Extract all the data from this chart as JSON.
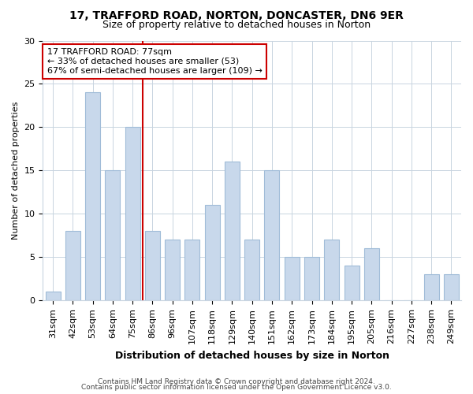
{
  "title1": "17, TRAFFORD ROAD, NORTON, DONCASTER, DN6 9ER",
  "title2": "Size of property relative to detached houses in Norton",
  "xlabel": "Distribution of detached houses by size in Norton",
  "ylabel": "Number of detached properties",
  "categories": [
    "31sqm",
    "42sqm",
    "53sqm",
    "64sqm",
    "75sqm",
    "86sqm",
    "96sqm",
    "107sqm",
    "118sqm",
    "129sqm",
    "140sqm",
    "151sqm",
    "162sqm",
    "173sqm",
    "184sqm",
    "195sqm",
    "205sqm",
    "216sqm",
    "227sqm",
    "238sqm",
    "249sqm"
  ],
  "values": [
    1,
    8,
    24,
    15,
    20,
    8,
    7,
    7,
    11,
    16,
    7,
    15,
    5,
    5,
    7,
    4,
    6,
    0,
    0,
    3,
    3
  ],
  "bar_color": "#c8d8eb",
  "bar_edge_color": "#a0bcd8",
  "highlight_line_index": 4,
  "annotation_line1": "17 TRAFFORD ROAD: 77sqm",
  "annotation_line2": "← 33% of detached houses are smaller (53)",
  "annotation_line3": "67% of semi-detached houses are larger (109) →",
  "annotation_box_facecolor": "#ffffff",
  "annotation_box_edgecolor": "#cc0000",
  "ylim": [
    0,
    30
  ],
  "yticks": [
    0,
    5,
    10,
    15,
    20,
    25,
    30
  ],
  "footer1": "Contains HM Land Registry data © Crown copyright and database right 2024.",
  "footer2": "Contains public sector information licensed under the Open Government Licence v3.0.",
  "bg_color": "#ffffff",
  "plot_bg_color": "#ffffff",
  "grid_color": "#c8d4e0",
  "title1_fontsize": 10,
  "title2_fontsize": 9,
  "xlabel_fontsize": 9,
  "ylabel_fontsize": 8,
  "tick_fontsize": 8,
  "annotation_fontsize": 8,
  "footer_fontsize": 6.5
}
